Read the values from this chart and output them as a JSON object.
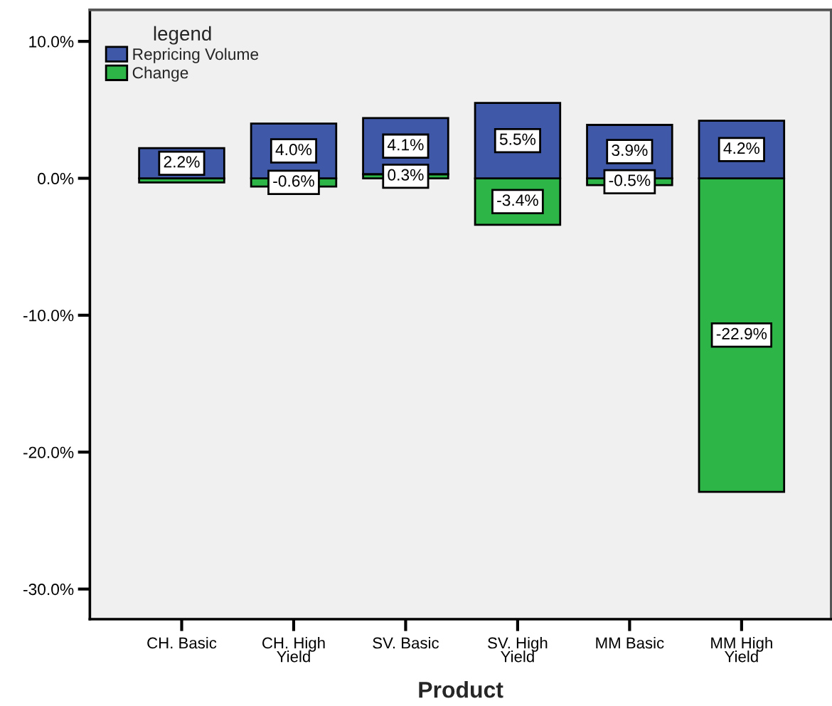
{
  "chart_data": {
    "type": "bar",
    "xlabel": "Product",
    "legend_title": "legend",
    "legend": "top left",
    "stacked": true,
    "categories": [
      "CH. Basic",
      "CH. High Yield",
      "SV. Basic",
      "SV. High Yield",
      "MM Basic",
      "MM High Yield"
    ],
    "series": [
      {
        "name": "Change",
        "color": "#2eb548",
        "values": [
          -0.3,
          -0.6,
          0.3,
          -3.4,
          -0.5,
          -22.9
        ],
        "value_labels": [
          null,
          "-0.6%",
          "0.3%",
          "-3.4%",
          "-0.5%",
          "-22.9%"
        ]
      },
      {
        "name": "Repricing Volume",
        "color": "#3f59a8",
        "values": [
          2.2,
          4.0,
          4.1,
          5.5,
          3.9,
          4.2
        ],
        "value_labels": [
          "2.2%",
          "4.0%",
          "4.1%",
          "5.5%",
          "3.9%",
          "4.2%"
        ]
      }
    ],
    "ylim": [
      -32.2,
      12.3
    ],
    "yticks": [
      {
        "value": -30,
        "label": "-30.0%"
      },
      {
        "value": -20,
        "label": "-20.0%"
      },
      {
        "value": -10,
        "label": "-10.0%"
      },
      {
        "value": 0,
        "label": "0.0%"
      },
      {
        "value": 10,
        "label": "10.0%"
      }
    ]
  }
}
